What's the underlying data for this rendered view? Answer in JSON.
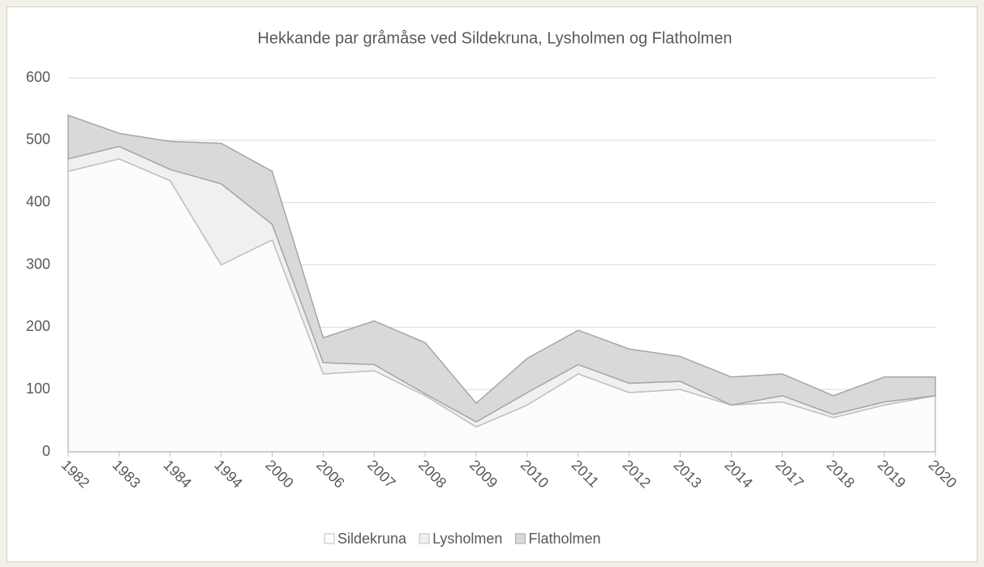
{
  "chart_data": {
    "type": "stacked_area",
    "title": "Hekkande par gråmåse ved Sildekruna, Lysholmen og Flatholmen",
    "categories": [
      "1982",
      "1983",
      "1984",
      "1994",
      "2000",
      "2006",
      "2007",
      "2008",
      "2009",
      "2010",
      "2011",
      "2012",
      "2013",
      "2014",
      "2017",
      "2018",
      "2019",
      "2020"
    ],
    "series": [
      {
        "name": "Sildekruna",
        "color": "#fcfcfc",
        "stroke": "#bfbfbf",
        "values": [
          450,
          470,
          435,
          300,
          340,
          125,
          130,
          90,
          40,
          75,
          125,
          95,
          100,
          75,
          80,
          55,
          75,
          90
        ]
      },
      {
        "name": "Lysholmen",
        "color": "#f0f0f0",
        "stroke": "#bfbfbf",
        "values": [
          20,
          20,
          18,
          130,
          25,
          18,
          10,
          3,
          8,
          20,
          15,
          15,
          13,
          0,
          10,
          5,
          5,
          0
        ]
      },
      {
        "name": "Flatholmen",
        "color": "#d9d9d9",
        "stroke": "#a6a6a6",
        "values": [
          70,
          21,
          45,
          65,
          85,
          40,
          70,
          82,
          30,
          55,
          55,
          55,
          40,
          45,
          35,
          30,
          40,
          30
        ]
      }
    ],
    "ylim": [
      0,
      600
    ],
    "yticks": [
      0,
      100,
      200,
      300,
      400,
      500,
      600
    ],
    "grid": true,
    "legend": "bottom"
  }
}
